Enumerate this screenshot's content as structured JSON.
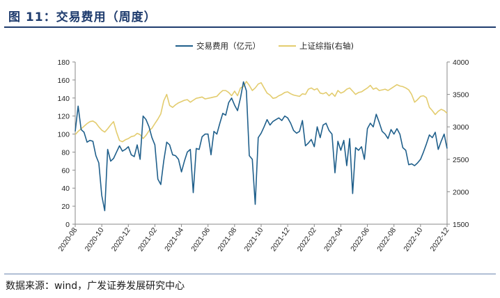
{
  "figure": {
    "title": "图 11：交易费用（周度）",
    "source": "数据来源：wind，广发证券发展研究中心"
  },
  "colors": {
    "fee": "#1f5f8b",
    "index": "#e3cc6e",
    "axis": "#888888",
    "title": "#1f3c6e"
  },
  "chart_data": {
    "type": "line",
    "title": "",
    "legend_position": "top-center",
    "x_labels": [
      "2020-08",
      "2020-10",
      "2020-12",
      "2021-02",
      "2021-04",
      "2021-06",
      "2021-08",
      "2021-10",
      "2021-12",
      "2022-02",
      "2022-04",
      "2022-06",
      "2022-08",
      "2022-10",
      "2022-12"
    ],
    "y_left": {
      "min": 0,
      "max": 180,
      "ticks": [
        0,
        20,
        40,
        60,
        80,
        100,
        120,
        140,
        160,
        180
      ]
    },
    "y_right": {
      "min": 1500,
      "max": 4000,
      "ticks": [
        1500,
        2000,
        2500,
        3000,
        3500,
        4000
      ]
    },
    "series": [
      {
        "name": "交易费用（亿元）",
        "axis": "left",
        "color": "#1f5f8b",
        "values": [
          103,
          131,
          105,
          102,
          91,
          93,
          92,
          76,
          68,
          32,
          15,
          83,
          70,
          73,
          80,
          87,
          81,
          83,
          86,
          77,
          75,
          88,
          72,
          120,
          116,
          108,
          96,
          88,
          50,
          44,
          70,
          91,
          88,
          77,
          76,
          72,
          58,
          70,
          80,
          83,
          35,
          84,
          83,
          97,
          100,
          100,
          77,
          103,
          100,
          112,
          123,
          121,
          135,
          140,
          132,
          126,
          140,
          158,
          148,
          76,
          72,
          22,
          96,
          101,
          108,
          116,
          110,
          114,
          116,
          118,
          115,
          120,
          118,
          112,
          104,
          101,
          103,
          115,
          87,
          90,
          94,
          86,
          108,
          96,
          110,
          112,
          104,
          100,
          57,
          92,
          82,
          93,
          65,
          95,
          34,
          85,
          82,
          86,
          72,
          106,
          112,
          108,
          122,
          113,
          103,
          100,
          95,
          105,
          100,
          106,
          100,
          85,
          82,
          66,
          67,
          65,
          68,
          72,
          80,
          89,
          99,
          96,
          102,
          83,
          92,
          100,
          84
        ]
      },
      {
        "name": "上证综指(右轴)",
        "axis": "right",
        "color": "#e3cc6e",
        "values": [
          2880,
          2930,
          2970,
          3010,
          3050,
          3080,
          3090,
          3060,
          3000,
          2950,
          2920,
          2970,
          3030,
          3080,
          2920,
          2790,
          2770,
          2800,
          2820,
          2850,
          2860,
          2900,
          2880,
          2820,
          2870,
          2940,
          2980,
          3050,
          3120,
          3200,
          3400,
          3500,
          3330,
          3300,
          3340,
          3370,
          3390,
          3410,
          3420,
          3380,
          3410,
          3440,
          3450,
          3460,
          3430,
          3440,
          3450,
          3460,
          3470,
          3520,
          3560,
          3560,
          3530,
          3480,
          3550,
          3480,
          3600,
          3620,
          3700,
          3640,
          3560,
          3600,
          3660,
          3680,
          3600,
          3520,
          3490,
          3440,
          3450,
          3480,
          3500,
          3530,
          3540,
          3510,
          3490,
          3480,
          3470,
          3510,
          3500,
          3580,
          3600,
          3570,
          3590,
          3520,
          3510,
          3530,
          3480,
          3520,
          3470,
          3560,
          3520,
          3540,
          3580,
          3600,
          3550,
          3500,
          3530,
          3540,
          3570,
          3600,
          3640,
          3580,
          3600,
          3560,
          3570,
          3580,
          3560,
          3590,
          3620,
          3650,
          3630,
          3620,
          3600,
          3570,
          3500,
          3380,
          3420,
          3470,
          3480,
          3450,
          3300,
          3250,
          3190,
          3240,
          3270,
          3250,
          3210
        ]
      }
    ]
  }
}
